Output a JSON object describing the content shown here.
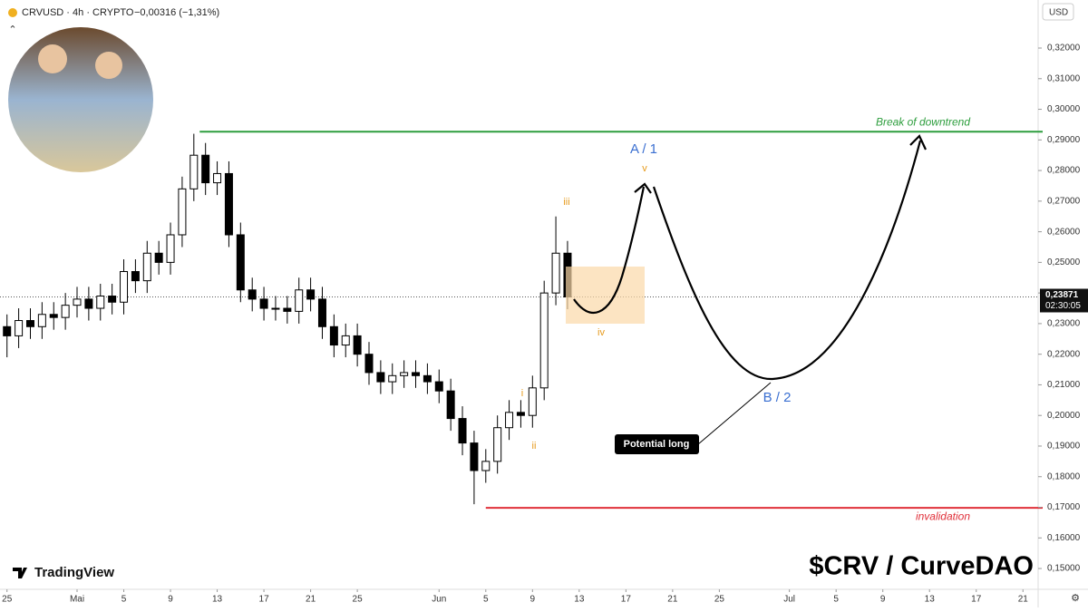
{
  "header": {
    "symbol": "CRVUSD · 4h · CRYPTO",
    "change": "−0,00316 (−1,31%)",
    "currency": "USD",
    "brand": "TradingView",
    "watermark": "$CRV / CurveDAO"
  },
  "chart_data": {
    "type": "candlestick",
    "up_color": "#ffffff",
    "down_color": "#000000",
    "x": [
      0,
      1,
      2,
      3,
      4,
      5,
      6,
      7,
      8,
      9,
      10,
      11,
      12,
      13,
      14,
      15,
      16,
      17,
      18,
      19,
      20,
      21,
      22,
      23,
      24,
      25,
      26,
      27,
      28,
      29,
      30,
      31,
      32,
      33,
      34,
      35,
      36,
      37,
      38,
      39,
      40,
      41,
      42,
      43,
      44,
      45,
      46,
      47,
      48
    ],
    "open": [
      0.229,
      0.226,
      0.231,
      0.229,
      0.233,
      0.232,
      0.236,
      0.238,
      0.235,
      0.239,
      0.237,
      0.247,
      0.244,
      0.253,
      0.25,
      0.259,
      0.274,
      0.285,
      0.276,
      0.279,
      0.259,
      0.241,
      0.238,
      0.235,
      0.235,
      0.234,
      0.241,
      0.238,
      0.229,
      0.223,
      0.226,
      0.22,
      0.214,
      0.211,
      0.213,
      0.214,
      0.213,
      0.211,
      0.208,
      0.199,
      0.191,
      0.182,
      0.185,
      0.196,
      0.201,
      0.2,
      0.209,
      0.24,
      0.253
    ],
    "high": [
      0.233,
      0.235,
      0.235,
      0.237,
      0.237,
      0.24,
      0.242,
      0.242,
      0.243,
      0.243,
      0.251,
      0.251,
      0.257,
      0.257,
      0.263,
      0.278,
      0.292,
      0.289,
      0.283,
      0.283,
      0.263,
      0.245,
      0.242,
      0.239,
      0.239,
      0.245,
      0.245,
      0.242,
      0.233,
      0.23,
      0.23,
      0.224,
      0.218,
      0.217,
      0.218,
      0.218,
      0.217,
      0.215,
      0.212,
      0.203,
      0.195,
      0.189,
      0.2,
      0.205,
      0.205,
      0.213,
      0.244,
      0.265,
      0.257
    ],
    "low": [
      0.219,
      0.222,
      0.225,
      0.225,
      0.228,
      0.228,
      0.232,
      0.231,
      0.231,
      0.233,
      0.233,
      0.24,
      0.24,
      0.246,
      0.246,
      0.255,
      0.27,
      0.272,
      0.272,
      0.255,
      0.237,
      0.234,
      0.231,
      0.231,
      0.23,
      0.23,
      0.234,
      0.225,
      0.219,
      0.219,
      0.216,
      0.21,
      0.207,
      0.207,
      0.209,
      0.209,
      0.207,
      0.204,
      0.195,
      0.187,
      0.171,
      0.178,
      0.181,
      0.192,
      0.196,
      0.196,
      0.205,
      0.236,
      0.2347
    ],
    "close": [
      0.226,
      0.231,
      0.229,
      0.233,
      0.232,
      0.236,
      0.238,
      0.235,
      0.239,
      0.237,
      0.247,
      0.244,
      0.253,
      0.25,
      0.259,
      0.274,
      0.285,
      0.276,
      0.279,
      0.259,
      0.241,
      0.238,
      0.235,
      0.235,
      0.234,
      0.241,
      0.238,
      0.229,
      0.223,
      0.226,
      0.22,
      0.214,
      0.211,
      0.213,
      0.214,
      0.213,
      0.211,
      0.208,
      0.199,
      0.191,
      0.182,
      0.185,
      0.196,
      0.201,
      0.2,
      0.209,
      0.24,
      0.253,
      0.2387
    ],
    "xlim": [
      -0.6,
      88.3
    ],
    "xticks": [
      {
        "value": 0,
        "label": "25"
      },
      {
        "value": 6,
        "label": "Mai"
      },
      {
        "value": 10,
        "label": "5"
      },
      {
        "value": 14,
        "label": "9"
      },
      {
        "value": 18,
        "label": "13"
      },
      {
        "value": 22,
        "label": "17"
      },
      {
        "value": 26,
        "label": "21"
      },
      {
        "value": 30,
        "label": "25"
      },
      {
        "value": 37,
        "label": "Jun"
      },
      {
        "value": 41,
        "label": "5"
      },
      {
        "value": 45,
        "label": "9"
      },
      {
        "value": 49,
        "label": "13"
      },
      {
        "value": 53,
        "label": "17"
      },
      {
        "value": 57,
        "label": "21"
      },
      {
        "value": 61,
        "label": "25"
      },
      {
        "value": 67,
        "label": "Jul"
      },
      {
        "value": 71,
        "label": "5"
      },
      {
        "value": 75,
        "label": "9"
      },
      {
        "value": 79,
        "label": "13"
      },
      {
        "value": 83,
        "label": "17"
      },
      {
        "value": 87,
        "label": "21"
      }
    ],
    "ylim": [
      0.1432,
      0.3357
    ],
    "yticks": [
      {
        "value": 0.15,
        "label": "0,15000"
      },
      {
        "value": 0.16,
        "label": "0,16000"
      },
      {
        "value": 0.17,
        "label": "0,17000"
      },
      {
        "value": 0.18,
        "label": "0,18000"
      },
      {
        "value": 0.19,
        "label": "0,19000"
      },
      {
        "value": 0.2,
        "label": "0,20000"
      },
      {
        "value": 0.21,
        "label": "0,21000"
      },
      {
        "value": 0.22,
        "label": "0,22000"
      },
      {
        "value": 0.23,
        "label": "0,23000"
      },
      {
        "value": 0.24,
        "label": "0,24000"
      },
      {
        "value": 0.25,
        "label": "0,25000"
      },
      {
        "value": 0.26,
        "label": "0,26000"
      },
      {
        "value": 0.27,
        "label": "0,27000"
      },
      {
        "value": 0.28,
        "label": "0,28000"
      },
      {
        "value": 0.29,
        "label": "0,29000"
      },
      {
        "value": 0.3,
        "label": "0,30000"
      },
      {
        "value": 0.31,
        "label": "0,31000"
      },
      {
        "value": 0.32,
        "label": "0,32000"
      }
    ],
    "last_price": {
      "value": 0.23871,
      "label": "0,23871",
      "countdown": "02:30:05"
    },
    "levels": [
      {
        "text": "Break of downtrend",
        "value": 0.2927,
        "start": 16.5,
        "color": "#2e9e3e"
      },
      {
        "text": "invalidation",
        "value": 0.1698,
        "start": 41,
        "color": "#e0303a"
      }
    ],
    "annotations": {
      "a1": "A / 1",
      "b2": "B / 2",
      "w1": "i",
      "w2": "ii",
      "w3": "iii",
      "w4": "iv",
      "w5": "v",
      "long": "Potential long"
    }
  }
}
